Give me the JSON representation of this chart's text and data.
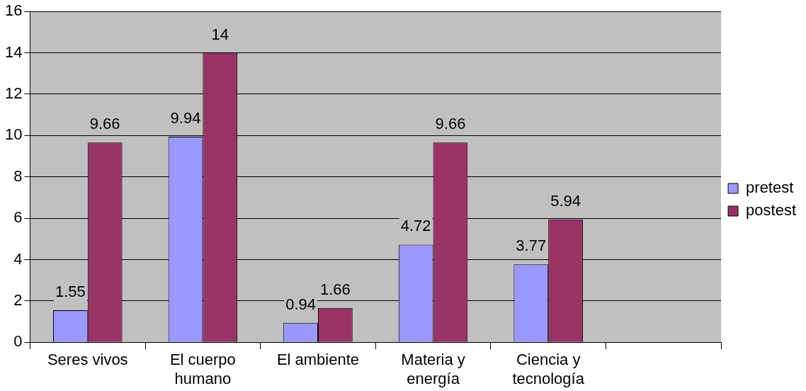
{
  "chart_data": {
    "type": "bar",
    "categories": [
      "Seres vivos",
      "El cuerpo humano",
      "El ambiente",
      "Materia y energía",
      "Ciencia y tecnología",
      null
    ],
    "series": [
      {
        "name": "pretest",
        "color": "#9999ff",
        "values": [
          1.55,
          9.94,
          0.94,
          4.72,
          3.77,
          null
        ]
      },
      {
        "name": "postest",
        "color": "#993366",
        "values": [
          9.66,
          14,
          1.66,
          9.66,
          5.94,
          null
        ]
      }
    ],
    "ylim": [
      0,
      16
    ],
    "yticks": [
      0,
      2,
      4,
      6,
      8,
      10,
      12,
      14,
      16
    ],
    "grid": "y",
    "legend": "right",
    "data_labels": true
  }
}
